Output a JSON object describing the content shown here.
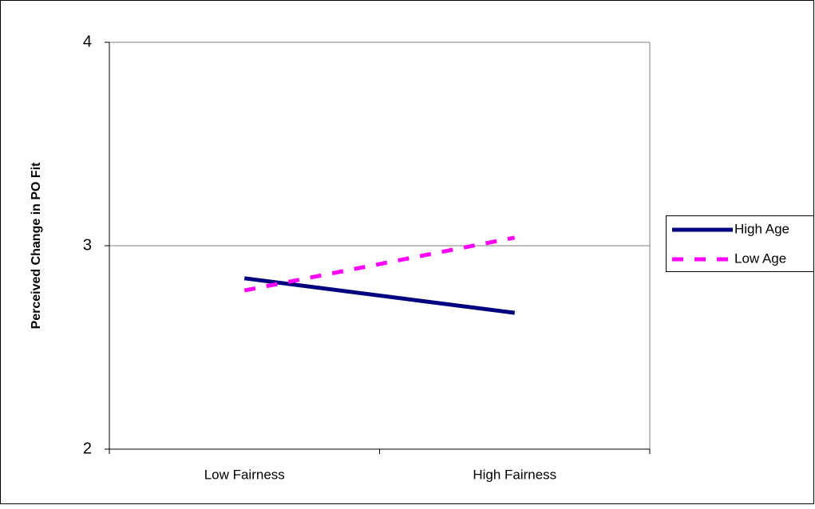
{
  "chart_data": {
    "type": "line",
    "y_label": "Perceived Change in PO Fit",
    "categories": [
      "Low Fairness",
      "High Fairness"
    ],
    "series": [
      {
        "name": "High Age",
        "color": "#000080",
        "dash": "solid",
        "values": [
          2.84,
          2.67
        ]
      },
      {
        "name": "Low Age",
        "color": "#ff00ff",
        "dash": "dashed",
        "values": [
          2.78,
          3.04
        ]
      }
    ],
    "ylim": [
      2,
      4
    ],
    "yticks": [
      2,
      3,
      4
    ],
    "grid": true,
    "legend": "right"
  }
}
